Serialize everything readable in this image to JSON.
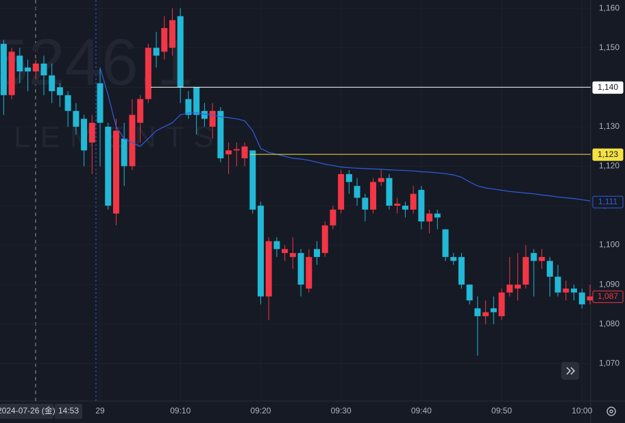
{
  "chart_data": {
    "type": "candlestick",
    "watermark": {
      "code": "5246.1",
      "name": "LEMENTS"
    },
    "crosshair": {
      "date": "2024-07-26 (金)",
      "time": "14:53"
    },
    "up_color": "#f23645",
    "down_color": "#22b8d6",
    "categories": [
      null,
      null,
      null,
      null,
      null,
      null,
      null,
      null,
      null,
      null,
      null,
      null,
      "29",
      null,
      null,
      null,
      null,
      null,
      null,
      null,
      null,
      null,
      "09:10",
      null,
      null,
      null,
      null,
      null,
      null,
      null,
      null,
      null,
      "09:20",
      null,
      null,
      null,
      null,
      null,
      null,
      null,
      null,
      null,
      "09:30",
      null,
      null,
      null,
      null,
      null,
      null,
      null,
      null,
      null,
      "09:40",
      null,
      null,
      null,
      null,
      null,
      null,
      null,
      null,
      null,
      "09:50",
      null,
      null,
      null,
      null,
      null,
      null,
      null,
      null,
      null,
      "10:00",
      null
    ],
    "open": [
      1151,
      1138,
      1148,
      1145,
      1144,
      1146,
      1143,
      1140,
      1138,
      1134,
      1132,
      1126,
      1141,
      1130,
      1108,
      1127,
      1120,
      1131,
      1137,
      1150,
      1149,
      1150,
      1158,
      1137,
      1140,
      1134,
      1130,
      1134,
      1123,
      1124,
      1122,
      1124,
      1110,
      1087,
      1101,
      1098,
      1097,
      1098,
      1089,
      1099,
      1098,
      1105,
      1109,
      1118,
      1115,
      1112,
      1109,
      1116,
      1117,
      1110,
      1110,
      1109,
      1114,
      1106,
      1108,
      1104,
      1097,
      1097,
      1090,
      1084,
      1082,
      1084,
      1082,
      1088,
      1089,
      1090,
      1098,
      1096,
      1096,
      1092,
      1088,
      1089,
      1088,
      1086
    ],
    "high": [
      1152,
      1150,
      1150,
      1147,
      1147,
      1148,
      1146,
      1141,
      1139,
      1136,
      1133,
      1133,
      1145,
      1131,
      1132,
      1131,
      1137,
      1138,
      1151,
      1154,
      1158,
      1160,
      1160,
      1139,
      1140,
      1136,
      1136,
      1135,
      1126,
      1126,
      1126,
      1124,
      1111,
      1102,
      1102,
      1100,
      1102,
      1099,
      1099,
      1101,
      1106,
      1110,
      1119,
      1119,
      1117,
      1113,
      1117,
      1119,
      1118,
      1112,
      1111,
      1115,
      1115,
      1109,
      1109,
      1104,
      1098,
      1098,
      1090,
      1087,
      1086,
      1087,
      1089,
      1097,
      1098,
      1100,
      1099,
      1099,
      1097,
      1095,
      1091,
      1090,
      1089,
      1090
    ],
    "low": [
      1133,
      1137,
      1141,
      1139,
      1142,
      1138,
      1136,
      1135,
      1130,
      1128,
      1120,
      1118,
      1120,
      1109,
      1105,
      1115,
      1119,
      1126,
      1136,
      1145,
      1147,
      1148,
      1136,
      1132,
      1128,
      1130,
      1127,
      1121,
      1118,
      1120,
      1120,
      1108,
      1085,
      1081,
      1097,
      1096,
      1094,
      1087,
      1088,
      1095,
      1097,
      1104,
      1108,
      1113,
      1110,
      1106,
      1108,
      1115,
      1109,
      1108,
      1107,
      1108,
      1104,
      1103,
      1104,
      1096,
      1095,
      1089,
      1085,
      1072,
      1080,
      1080,
      1081,
      1087,
      1086,
      1089,
      1087,
      1094,
      1087,
      1087,
      1086,
      1086,
      1084,
      1085
    ],
    "close": [
      1138,
      1149,
      1144,
      1144,
      1146,
      1143,
      1139,
      1138,
      1134,
      1130,
      1124,
      1131,
      1131,
      1110,
      1129,
      1120,
      1133,
      1137,
      1150,
      1148,
      1155,
      1157,
      1140,
      1133,
      1133,
      1132,
      1134,
      1122,
      1124,
      1124.3,
      1125,
      1109,
      1087,
      1101,
      1099,
      1099,
      1098,
      1090,
      1097,
      1097,
      1105,
      1109,
      1118,
      1116,
      1112,
      1109,
      1116,
      1117,
      1110,
      1110.5,
      1109,
      1113,
      1106,
      1108,
      1107,
      1097,
      1096,
      1090,
      1086,
      1082,
      1083,
      1083,
      1088,
      1090,
      1090,
      1097,
      1096,
      1097,
      1092,
      1088,
      1089,
      1088,
      1085,
      1087
    ],
    "overlay": {
      "color": "#2f5fe0",
      "values": [
        null,
        null,
        null,
        null,
        null,
        null,
        null,
        null,
        null,
        null,
        null,
        null,
        1145,
        1138,
        1130,
        1127,
        1126,
        1125,
        1127,
        1129,
        1130,
        1131,
        1133,
        1133.5,
        1133.5,
        1133.2,
        1133,
        1132.5,
        1132.3,
        1132,
        1131.5,
        1129,
        1124.5,
        1123.5,
        1123,
        1122.5,
        1122,
        1121.8,
        1121.5,
        1121,
        1120.5,
        1120.2,
        1119.8,
        1119.6,
        1119.5,
        1119.4,
        1119.3,
        1119.2,
        1119.1,
        1119,
        1118.9,
        1118.8,
        1118.6,
        1118.5,
        1118.3,
        1118.1,
        1117.8,
        1117.2,
        1116,
        1115,
        1114.5,
        1114.2,
        1113.9,
        1113.6,
        1113.4,
        1113.2,
        1113,
        1112.7,
        1112.5,
        1112.2,
        1112,
        1111.8,
        1111.5,
        1111.2
      ]
    },
    "ylim": [
      1060.5,
      1162.1
    ],
    "yticks": [
      {
        "value": 1070,
        "label": "1,070"
      },
      {
        "value": 1080,
        "label": "1,080"
      },
      {
        "value": 1090,
        "label": "1,090"
      },
      {
        "value": 1100,
        "label": "1,100"
      },
      {
        "value": 1110,
        "label": "1,110"
      },
      {
        "value": 1120,
        "label": "1,120"
      },
      {
        "value": 1130,
        "label": "1,130"
      },
      {
        "value": 1140,
        "label": "1,140"
      },
      {
        "value": 1150,
        "label": "1,150"
      },
      {
        "value": 1160,
        "label": "1,160"
      }
    ],
    "price_lines": [
      {
        "value": 1140,
        "label": "1,140",
        "color": "#ffffff",
        "line": true,
        "filled": true
      },
      {
        "value": 1123,
        "label": "1,123",
        "color": "#f5e142",
        "line": true,
        "filled": true
      },
      {
        "value": 1111,
        "label": "1,111",
        "color": "#2f5fe0",
        "line": false,
        "filled": false
      },
      {
        "value": 1087,
        "label": "1,087",
        "color": "#f23645",
        "line": false,
        "filled": false
      }
    ],
    "grid": true
  }
}
